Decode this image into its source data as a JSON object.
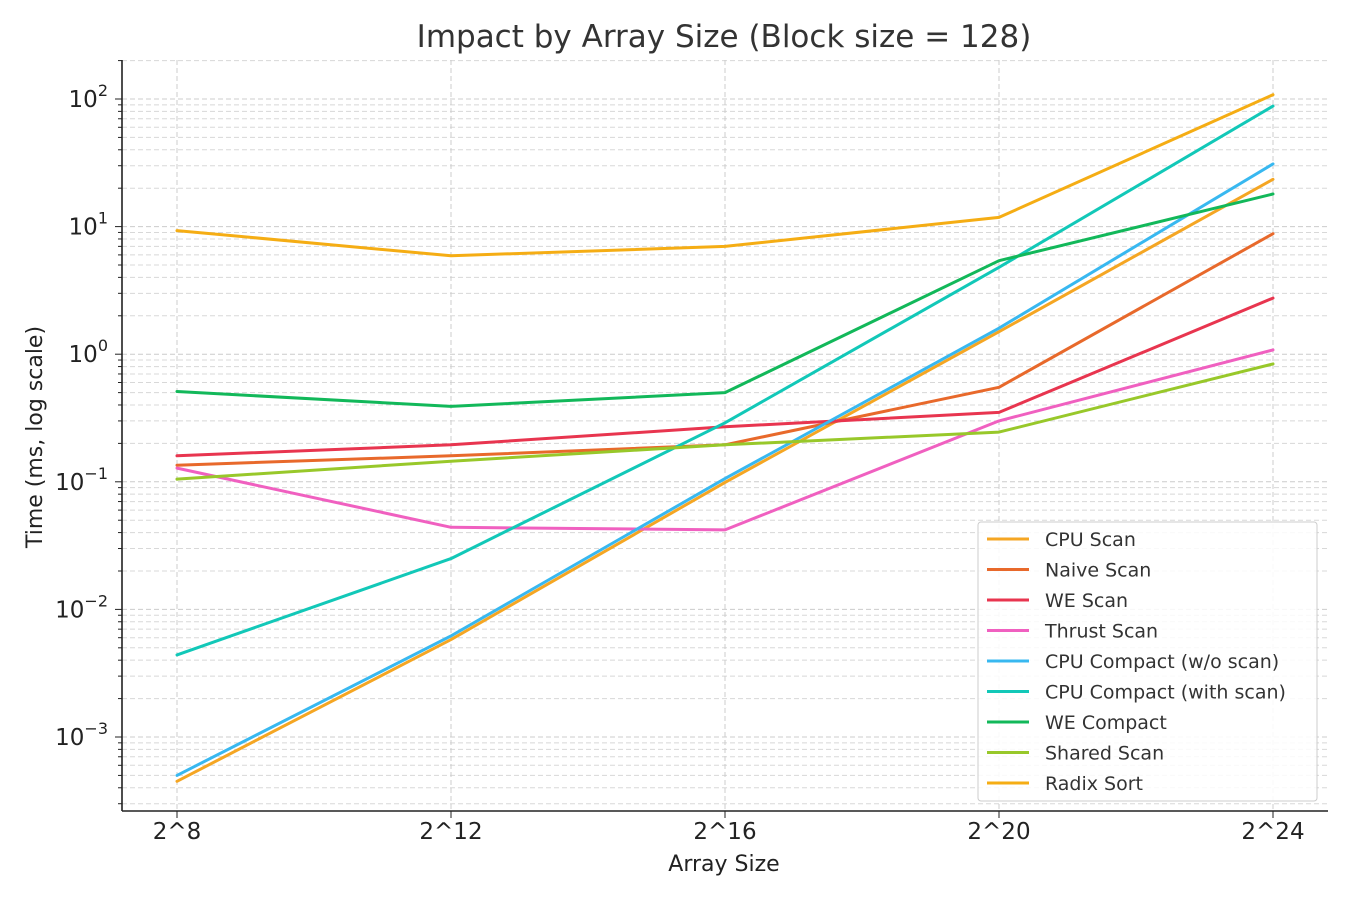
{
  "chart_data": {
    "type": "line",
    "title": "Impact by Array Size (Block size = 128)",
    "xlabel": "Array Size",
    "ylabel": "Time (ms, log scale)",
    "yscale": "log",
    "ylim": [
      0.00025,
      200
    ],
    "grid": true,
    "legend_position": "bottom-right",
    "categories": [
      "2^8",
      "2^12",
      "2^16",
      "2^20",
      "2^24"
    ],
    "y_ticks": [
      {
        "base": "10",
        "exp": "2"
      },
      {
        "base": "10",
        "exp": "1"
      },
      {
        "base": "10",
        "exp": "0"
      },
      {
        "base": "10",
        "exp": "−1"
      },
      {
        "base": "10",
        "exp": "−2"
      },
      {
        "base": "10",
        "exp": "−3"
      }
    ],
    "series": [
      {
        "name": "CPU Scan",
        "color": "#f5a623",
        "values": [
          0.00045,
          0.0058,
          0.099,
          1.5,
          23.5
        ]
      },
      {
        "name": "Naive Scan",
        "color": "#e8692b",
        "values": [
          0.135,
          0.16,
          0.195,
          0.55,
          8.8
        ]
      },
      {
        "name": "WE Scan",
        "color": "#e8354f",
        "values": [
          0.16,
          0.195,
          0.27,
          0.35,
          2.75
        ]
      },
      {
        "name": "Thrust Scan",
        "color": "#f060c0",
        "values": [
          0.128,
          0.044,
          0.042,
          0.3,
          1.08
        ]
      },
      {
        "name": "CPU Compact (w/o scan)",
        "color": "#38b8f0",
        "values": [
          0.0005,
          0.0062,
          0.106,
          1.6,
          31
        ]
      },
      {
        "name": "CPU Compact (with scan)",
        "color": "#12c8b8",
        "values": [
          0.0044,
          0.025,
          0.29,
          4.8,
          88
        ]
      },
      {
        "name": "WE Compact",
        "color": "#12b85a",
        "values": [
          0.51,
          0.39,
          0.5,
          5.4,
          18
        ]
      },
      {
        "name": "Shared Scan",
        "color": "#98c82a",
        "values": [
          0.105,
          0.145,
          0.195,
          0.245,
          0.84
        ]
      },
      {
        "name": "Radix Sort",
        "color": "#f5ad14",
        "values": [
          9.3,
          5.9,
          7.0,
          11.8,
          108
        ]
      }
    ]
  }
}
